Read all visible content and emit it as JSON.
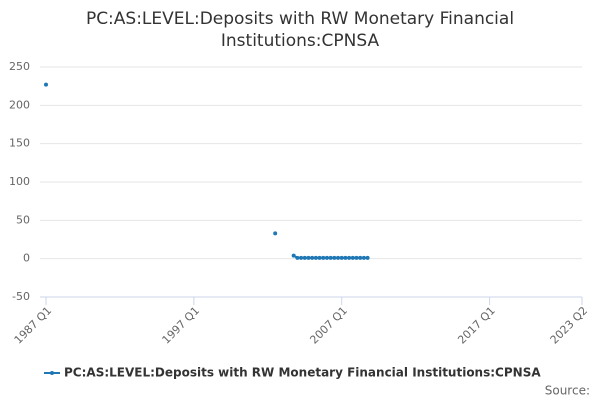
{
  "chart_data": {
    "type": "line",
    "title": "PC:AS:LEVEL:Deposits with RW Monetary Financial Institutions:CPNSA",
    "source": "Source:",
    "x": [
      "1987 Q1",
      "1987 Q2",
      "2002 Q3",
      "2002 Q4",
      "2003 Q4",
      "2004 Q1",
      "2004 Q2",
      "2004 Q3",
      "2004 Q4",
      "2005 Q1",
      "2005 Q2",
      "2005 Q3",
      "2005 Q4",
      "2006 Q1",
      "2006 Q2",
      "2006 Q3",
      "2006 Q4",
      "2007 Q1",
      "2007 Q2",
      "2007 Q3",
      "2007 Q4",
      "2008 Q1",
      "2008 Q2",
      "2008 Q3",
      "2008 Q4"
    ],
    "series": [
      {
        "name": "PC:AS:LEVEL:Deposits with RW Monetary Financial Institutions:CPNSA",
        "color": "#1f77b4",
        "values": [
          227,
          null,
          33,
          null,
          4,
          1,
          1,
          1,
          1,
          1,
          1,
          1,
          1,
          1,
          1,
          1,
          1,
          1,
          1,
          1,
          1,
          1,
          1,
          1,
          1
        ]
      }
    ],
    "xlim": [
      "1987 Q1",
      "2023 Q2"
    ],
    "xticks": [
      "1987 Q1",
      "1997 Q1",
      "2007 Q1",
      "2017 Q1",
      "2023 Q2"
    ],
    "ylim": [
      -50,
      250
    ],
    "yticks": [
      -50,
      0,
      50,
      100,
      150,
      200,
      250
    ],
    "grid": true
  }
}
